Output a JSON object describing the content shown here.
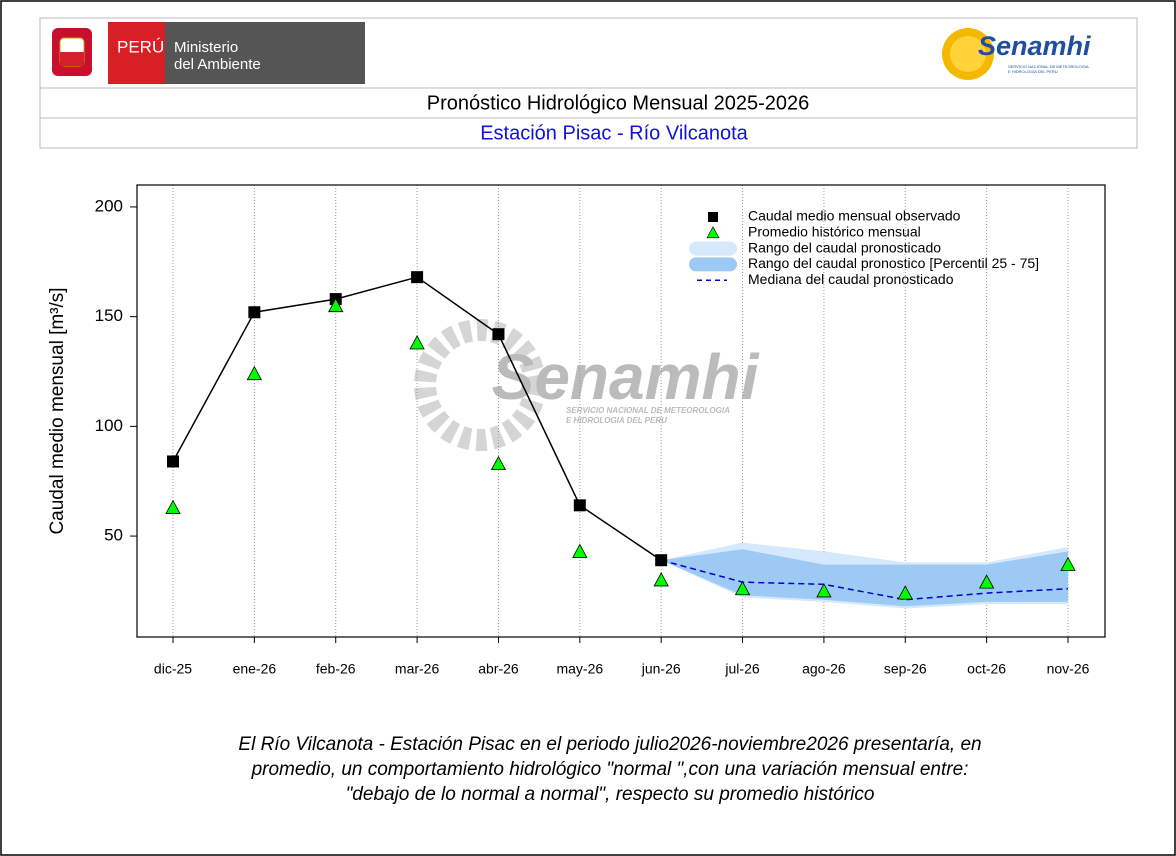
{
  "header": {
    "country": "PERÚ",
    "ministry_line1": "Ministerio",
    "ministry_line2": "del Ambiente",
    "logo": "Senamhi",
    "logo_sub1": "SERVICIO NACIONAL DE METEOROLOGIA",
    "logo_sub2": "E HIDROLOGIA DEL PERU",
    "title": "Pronóstico Hidrológico Mensual 2025-2026",
    "subtitle": "Estación Pisac - Río Vilcanota"
  },
  "chart_data": {
    "type": "line",
    "y_label": "Caudal medio mensual  [m³/s]",
    "watermark": "Senamhi",
    "watermark_sub1": "SERVICIO NACIONAL DE METEOROLOGIA",
    "watermark_sub2": "E HIDROLOGIA DEL PERU",
    "categories": [
      "dic-25",
      "ene-26",
      "feb-26",
      "mar-26",
      "abr-26",
      "may-26",
      "jun-26",
      "jul-26",
      "ago-26",
      "sep-26",
      "oct-26",
      "nov-26"
    ],
    "ylim": [
      4,
      210
    ],
    "yticks": [
      50,
      100,
      150,
      200
    ],
    "grid": true,
    "legend": "upper right",
    "series": [
      {
        "name": "Caudal medio mensual observado",
        "color": "#000000",
        "kind": "observed",
        "values": [
          84,
          152,
          158,
          168,
          142,
          64,
          39,
          null,
          null,
          null,
          null,
          null
        ]
      },
      {
        "name": "Promedio histórico mensual",
        "color": "#00ff00",
        "kind": "historical",
        "values": [
          63,
          124,
          155,
          138,
          83,
          43,
          30,
          26,
          25,
          24,
          29,
          37
        ]
      },
      {
        "name": "Rango del caudal pronosticado",
        "color": "#d6e8fb",
        "kind": "band",
        "low": [
          null,
          null,
          null,
          null,
          null,
          null,
          39,
          22,
          20,
          17,
          19,
          19
        ],
        "high": [
          null,
          null,
          null,
          null,
          null,
          null,
          39,
          47,
          43,
          38,
          38,
          45
        ]
      },
      {
        "name": "Rango del caudal pronostico [Percentil 25 - 75]",
        "color": "#9ccaf5",
        "kind": "band",
        "low": [
          null,
          null,
          null,
          null,
          null,
          null,
          39,
          23,
          21,
          18,
          20,
          20
        ],
        "high": [
          null,
          null,
          null,
          null,
          null,
          null,
          39,
          44,
          37,
          37,
          37,
          43
        ]
      },
      {
        "name": "Mediana del caudal pronosticado",
        "color": "#0000cc",
        "kind": "median",
        "values": [
          null,
          null,
          null,
          null,
          null,
          null,
          39,
          29,
          28,
          21,
          24,
          26
        ]
      }
    ]
  },
  "footer": {
    "lines": [
      "El Río Vilcanota - Estación Pisac en el periodo julio2026-noviembre2026 presentaría, en",
      "promedio, un comportamiento hidrológico \"normal \",con una variación mensual entre:",
      "\"debajo de lo normal a normal\", respecto su promedio histórico"
    ]
  }
}
